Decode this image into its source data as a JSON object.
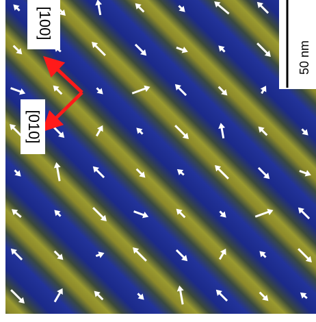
{
  "labels": {
    "direction_a": "[100]",
    "direction_b": "[010]",
    "scale_bar": "50 nm"
  }
}
